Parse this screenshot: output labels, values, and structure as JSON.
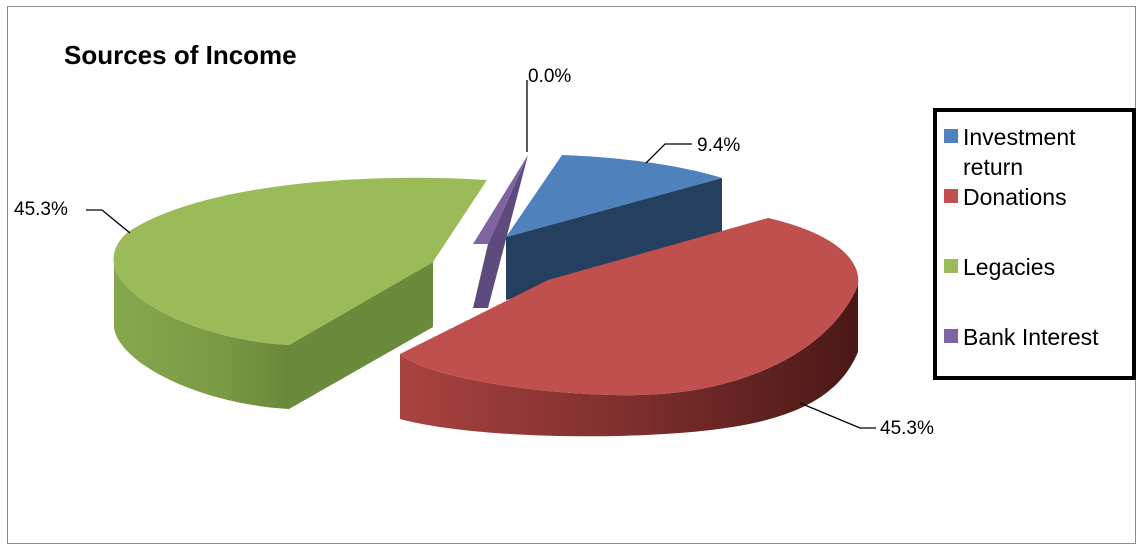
{
  "chart_data": {
    "type": "pie",
    "title": "Sources of Income",
    "categories": [
      "Investment return",
      "Donations",
      "Legacies",
      "Bank Interest"
    ],
    "values": [
      9.4,
      45.3,
      45.3,
      0.0
    ],
    "value_labels": [
      "9.4%",
      "45.3%",
      "45.3%",
      "0.0%"
    ],
    "colors": [
      "#4f81bd",
      "#c0504d",
      "#9bbb59",
      "#8064a2"
    ],
    "style": "3d-exploded",
    "legend_position": "right"
  }
}
